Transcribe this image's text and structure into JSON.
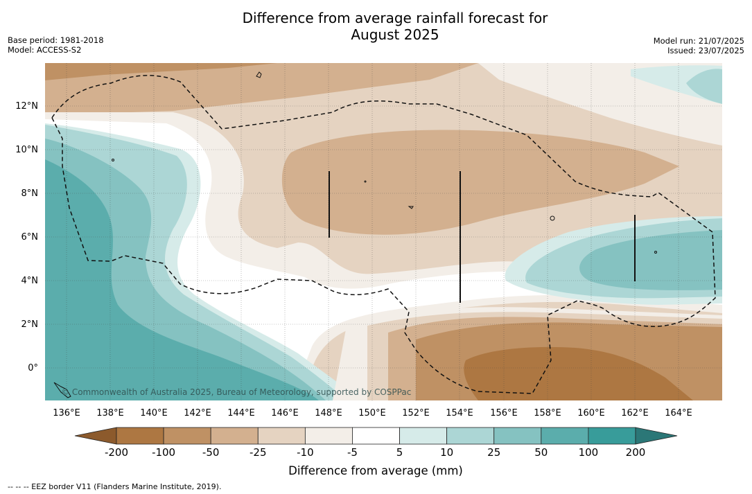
{
  "title_line1": "Difference from average rainfall forecast for",
  "title_line2": "August 2025",
  "meta_left": {
    "base_period": "Base period: 1981-2018",
    "model": "Model: ACCESS-S2"
  },
  "meta_right": {
    "model_run": "Model run: 21/07/2025",
    "issued": "Issued: 23/07/2025"
  },
  "map": {
    "lon_labels": [
      "136°E",
      "138°E",
      "140°E",
      "142°E",
      "144°E",
      "146°E",
      "148°E",
      "150°E",
      "152°E",
      "154°E",
      "156°E",
      "158°E",
      "160°E",
      "162°E",
      "164°E"
    ],
    "lat_labels": [
      "12°N",
      "10°N",
      "8°N",
      "6°N",
      "4°N",
      "2°N",
      "0°"
    ],
    "copyright": "© Commonwealth of Australia 2025, Bureau of Meteorology, supported by COSPPac"
  },
  "colorbar": {
    "labels": [
      "-200",
      "-100",
      "-50",
      "-25",
      "-10",
      "-5",
      "5",
      "10",
      "25",
      "50",
      "100",
      "200"
    ],
    "colors": [
      "#ad7742",
      "#bf9164",
      "#d3b08f",
      "#e5d3c1",
      "#f3eee8",
      "#ffffff",
      "#d6ebe9",
      "#acd6d5",
      "#85c2c1",
      "#5badac",
      "#389c9a"
    ],
    "under_color": "#8c5a2c",
    "over_color": "#2b7777",
    "title": "Difference from average (mm)"
  },
  "footnote": "--  --  -- EEZ border V11 (Flanders Marine Institute, 2019)."
}
